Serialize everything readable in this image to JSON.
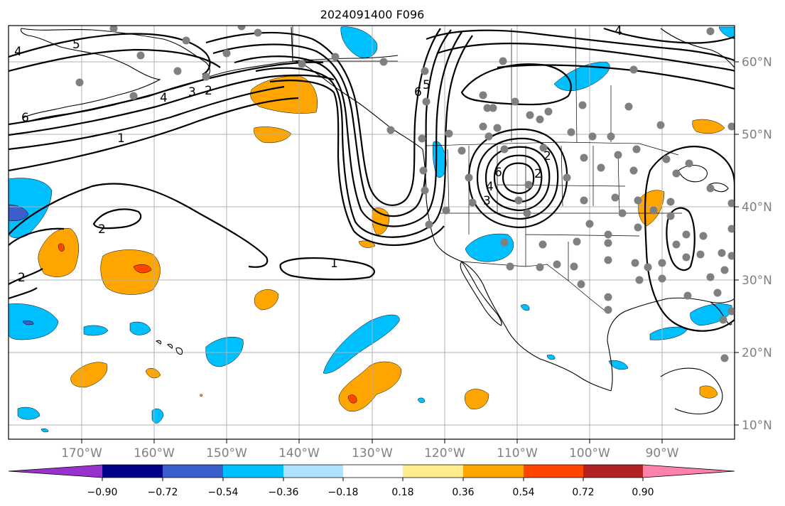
{
  "title": "2024091400 F096",
  "colors": {
    "neg_deep": "#9932CC",
    "neg_navy": "#00008B",
    "neg_royal": "#3A5FCD",
    "neg_sky": "#00BFFF",
    "neg_light": "#B0E2FF",
    "neutral": "#FFFFFF",
    "pos_yellow": "#FFEC8B",
    "pos_orange": "#FFA500",
    "pos_red": "#FF4500",
    "pos_dark": "#B22222",
    "pos_pink": "#FF82AB",
    "station": "#808080",
    "grid": "#B0B0B0"
  },
  "axes": {
    "lon_ticks": [
      "170°W",
      "160°W",
      "150°W",
      "140°W",
      "130°W",
      "120°W",
      "110°W",
      "100°W",
      "90°W"
    ],
    "lat_ticks": [
      "60°N",
      "50°N",
      "40°N",
      "30°N",
      "20°N",
      "10°N"
    ]
  },
  "colorbar": {
    "ticks": [
      "−0.90",
      "−0.72",
      "−0.54",
      "−0.36",
      "−0.18",
      "0.18",
      "0.36",
      "0.54",
      "0.72",
      "0.90"
    ]
  },
  "contour_labels": [
    "4",
    "5",
    "6",
    "1",
    "2",
    "2",
    "1",
    "4",
    "3",
    "2",
    "6",
    "5",
    "2",
    "6",
    "4",
    "3",
    "2",
    "4"
  ]
}
